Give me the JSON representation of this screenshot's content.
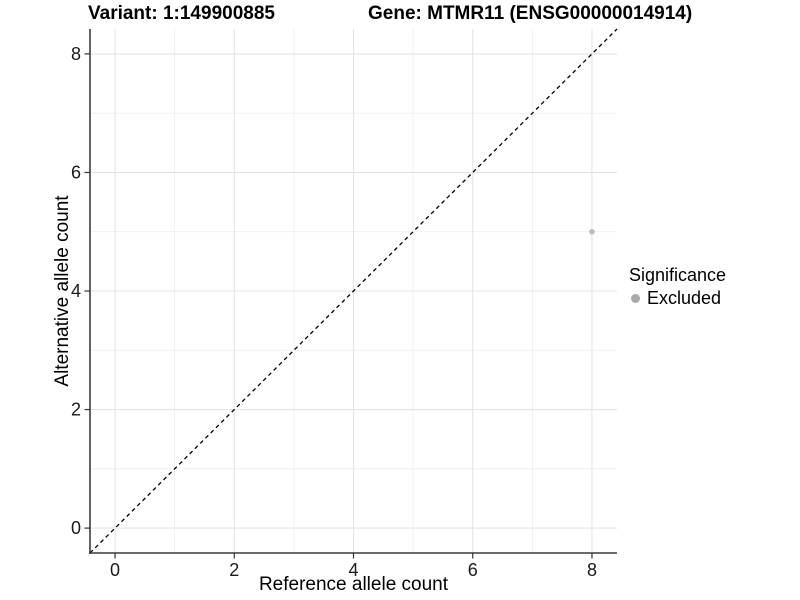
{
  "chart_data": {
    "type": "scatter",
    "title_left": "Variant: 1:149900885",
    "title_right": "Gene: MTMR11 (ENSG00000014914)",
    "xlabel": "Reference allele count",
    "ylabel": "Alternative allele count",
    "xlim": [
      -0.42,
      8.42
    ],
    "ylim": [
      -0.42,
      8.42
    ],
    "xticks": [
      0,
      2,
      4,
      6,
      8
    ],
    "yticks": [
      0,
      2,
      4,
      6,
      8
    ],
    "minor_gridlines_x": [
      1,
      3,
      5,
      7
    ],
    "minor_gridlines_y": [
      1,
      3,
      5,
      7
    ],
    "grid": "on",
    "legend_position": "right",
    "identity_line": {
      "style": "dashed",
      "slope": 1,
      "intercept": 0,
      "color": "#000000"
    },
    "series": [
      {
        "name": "Excluded",
        "color": "#bdbdbd",
        "points": [
          {
            "x": 8,
            "y": 5
          }
        ]
      }
    ],
    "legend": {
      "title": "Significance",
      "items": [
        {
          "label": "Excluded",
          "color": "#aaaaaa"
        }
      ]
    },
    "colors": {
      "grid_major": "#e4e4e4",
      "grid_minor": "#efefef",
      "axis_line": "#3c3c3c",
      "tick_mark": "#333333",
      "tick_text": "#1a1a1a",
      "background": "#ffffff"
    }
  }
}
